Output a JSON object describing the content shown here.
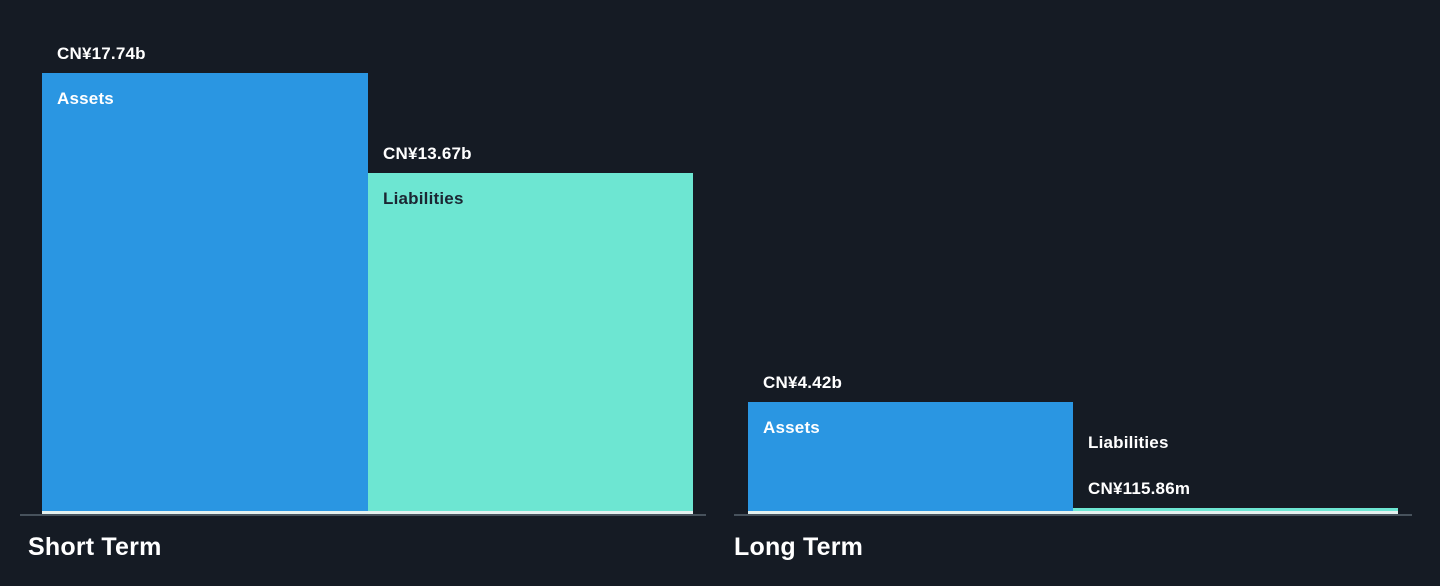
{
  "colors": {
    "background": "#151b24",
    "assets_bar": "#2a96e2",
    "liabilities_bar": "#6de6d2",
    "label_on_teal": "#1b2733",
    "label_light": "#ffffff",
    "axis_line": "#47525c",
    "baseline_highlight": "#e4f1ef"
  },
  "chart_data": {
    "type": "bar",
    "orientation": "vertical",
    "currency": "CN¥",
    "value_scale_note": "heights proportional to value; 17.74b = tallest bar",
    "ylim_billions": [
      0,
      17.74
    ],
    "grid": false,
    "legend": false,
    "groups": [
      {
        "title": "Short Term",
        "bars": [
          {
            "name": "Assets",
            "value_label": "CN¥17.74b",
            "value_billions": 17.74,
            "color_key": "assets_bar",
            "label_style": "light-inside"
          },
          {
            "name": "Liabilities",
            "value_label": "CN¥13.67b",
            "value_billions": 13.67,
            "color_key": "liabilities_bar",
            "label_style": "dark-inside"
          }
        ]
      },
      {
        "title": "Long Term",
        "bars": [
          {
            "name": "Assets",
            "value_label": "CN¥4.42b",
            "value_billions": 4.42,
            "color_key": "assets_bar",
            "label_style": "light-inside"
          },
          {
            "name": "Liabilities",
            "value_label": "CN¥115.86m",
            "value_billions": 0.11586,
            "color_key": "liabilities_bar",
            "label_style": "light-outside"
          }
        ]
      }
    ]
  }
}
